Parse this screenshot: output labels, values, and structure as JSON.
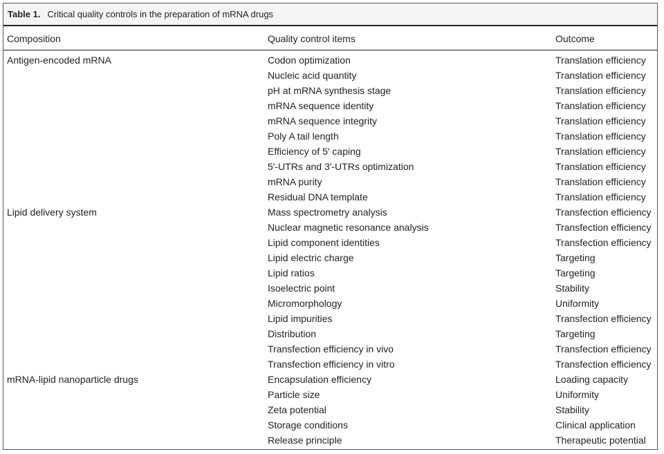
{
  "table": {
    "label": "Table 1.",
    "title": "Critical quality controls in the preparation of mRNA drugs",
    "header": [
      "Composition",
      "Quality control items",
      "Outcome"
    ],
    "groups": [
      {
        "composition": "Antigen-encoded mRNA",
        "rows": [
          [
            "Codon optimization",
            "Translation efficiency"
          ],
          [
            "Nucleic acid quantity",
            "Translation efficiency"
          ],
          [
            "pH at mRNA synthesis stage",
            "Translation efficiency"
          ],
          [
            "mRNA sequence identity",
            "Translation efficiency"
          ],
          [
            "mRNA sequence integrity",
            "Translation efficiency"
          ],
          [
            "Poly A tail length",
            "Translation efficiency"
          ],
          [
            "Efficiency of 5′ caping",
            "Translation efficiency"
          ],
          [
            "5′-UTRs and 3′-UTRs optimization",
            "Translation efficiency"
          ],
          [
            "mRNA purity",
            "Translation efficiency"
          ],
          [
            "Residual DNA template",
            "Translation efficiency"
          ]
        ]
      },
      {
        "composition": "Lipid delivery system",
        "rows": [
          [
            "Mass spectrometry analysis",
            "Transfection efficiency"
          ],
          [
            "Nuclear magnetic resonance analysis",
            "Transfection efficiency"
          ],
          [
            "Lipid component identities",
            "Transfection efficiency"
          ],
          [
            "Lipid electric charge",
            "Targeting"
          ],
          [
            "Lipid ratios",
            "Targeting"
          ],
          [
            "Isoelectric point",
            "Stability"
          ],
          [
            "Micromorphology",
            "Uniformity"
          ],
          [
            "Lipid impurities",
            "Transfection efficiency"
          ],
          [
            "Distribution",
            "Targeting"
          ],
          [
            "Transfection efficiency in vivo",
            "Transfection efficiency"
          ],
          [
            "Transfection efficiency in vitro",
            "Transfection efficiency"
          ]
        ]
      },
      {
        "composition": "mRNA-lipid nanoparticle drugs",
        "rows": [
          [
            "Encapsulation efficiency",
            "Loading capacity"
          ],
          [
            "Particle size",
            "Uniformity"
          ],
          [
            "Zeta potential",
            "Stability"
          ],
          [
            "Storage conditions",
            "Clinical application"
          ],
          [
            "Release principle",
            "Therapeutic potential"
          ]
        ]
      }
    ]
  }
}
